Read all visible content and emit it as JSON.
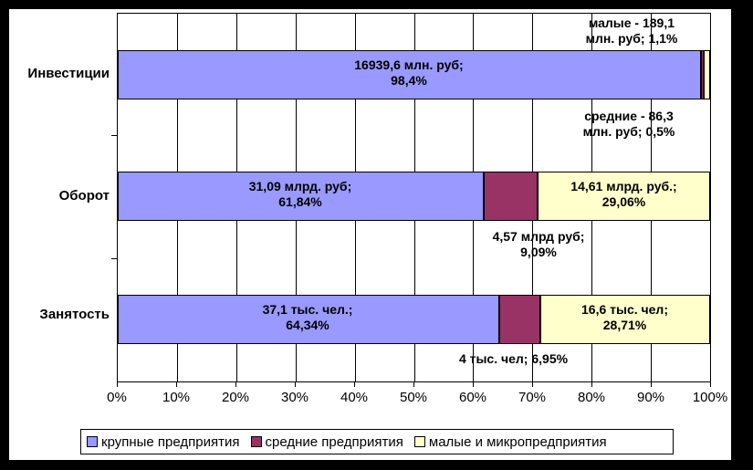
{
  "chart_data": {
    "type": "bar",
    "orientation": "horizontal",
    "stacked": "100%",
    "title": "",
    "categories": [
      "Инвестиции",
      "Оборот",
      "Занятость"
    ],
    "series": [
      {
        "name": "крупные предприятия",
        "color": "#9999FF",
        "values": [
          98.4,
          61.84,
          64.34
        ]
      },
      {
        "name": "средние предприятия",
        "color": "#993366",
        "values": [
          0.5,
          9.09,
          6.95
        ]
      },
      {
        "name": "малые и микропредприятия",
        "color": "#FFFFCC",
        "values": [
          1.1,
          29.06,
          28.71
        ]
      }
    ],
    "x_ticks": [
      "0%",
      "10%",
      "20%",
      "30%",
      "40%",
      "50%",
      "60%",
      "70%",
      "80%",
      "90%",
      "100%"
    ],
    "xlim": [
      0,
      100
    ],
    "grid": "vertical gridlines every 10%",
    "legend_position": "bottom",
    "data_labels": {
      "investments": {
        "large": [
          "16939,6 млн. руб;",
          "98,4%"
        ],
        "medium_outside": [
          "средние - 86,3",
          "млн. руб; 0,5%"
        ],
        "small_outside": [
          "малые - 189,1",
          "млн. руб; 1,1%"
        ]
      },
      "turnover": {
        "large": [
          "31,09 млрд. руб;",
          "61,84%"
        ],
        "medium_outside": [
          "4,57 млрд руб;",
          "9,09%"
        ],
        "small": [
          "14,61 млрд. руб.;",
          "29,06%"
        ]
      },
      "employment": {
        "large": [
          "37,1 тыс. чел.;",
          "64,34%"
        ],
        "medium_outside": [
          "4 тыс. чел; 6,95%"
        ],
        "small": [
          "16,6 тыс. чел;",
          "28,71%"
        ]
      }
    }
  },
  "legend": {
    "items": [
      {
        "label": "крупные предприятия",
        "color": "#9999FF"
      },
      {
        "label": "средние предприятия",
        "color": "#993366"
      },
      {
        "label": "малые и микропредприятия",
        "color": "#FFFFCC"
      }
    ]
  },
  "colors": {
    "frame": "#000000",
    "background": "#FFFFFF",
    "axis": "#000000"
  }
}
